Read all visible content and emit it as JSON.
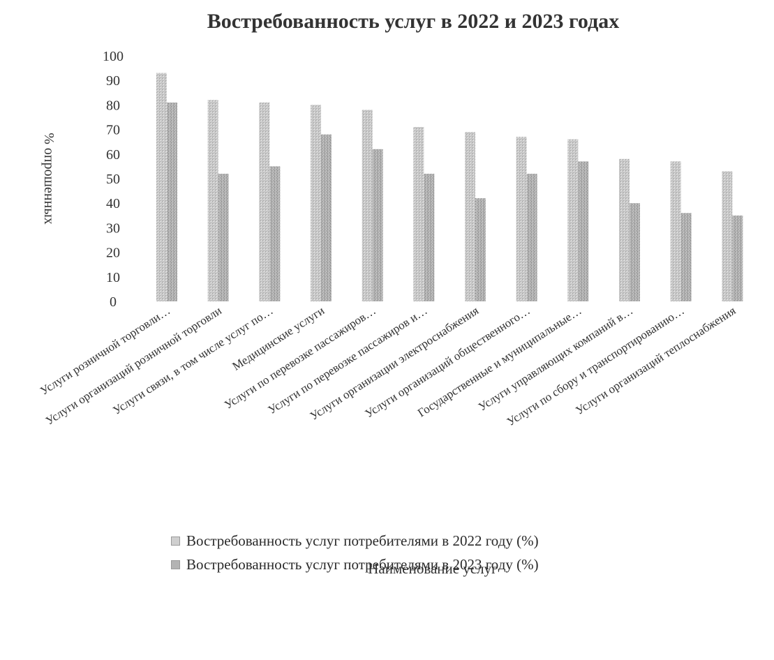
{
  "chart_data": {
    "type": "bar",
    "title": "Востребованность услуг в 2022 и 2023 годах",
    "xlabel": "Наименование услуг",
    "ylabel": "% опрошенных",
    "ylim": [
      0,
      100
    ],
    "yticks": [
      0,
      10,
      20,
      30,
      40,
      50,
      60,
      70,
      80,
      90,
      100
    ],
    "grid": false,
    "legend_position": "bottom",
    "categories": [
      "Услуги розничной торговли…",
      "Услуги организаций розничной торговли",
      "Услуги связи, в том числе услуг по…",
      "Медицинские услуги",
      "Услуги по перевозке пассажиров…",
      "Услуги по перевозке пассажиров и…",
      "Услуги организации электроснабжения",
      "Услуги организаций общественного…",
      "Государственные и муниципальные…",
      "Услуги управляющих компаний в…",
      "Услуги по сбору и транспортированию…",
      "Услуги организаций теплоснабжения"
    ],
    "series": [
      {
        "name": "Востребованность услуг потребителями в 2022 году (%)",
        "values": [
          93,
          82,
          81,
          80,
          78,
          71,
          69,
          67,
          66,
          58,
          57,
          53
        ],
        "color": "#c4c4c4"
      },
      {
        "name": "Востребованность услуг потребителями в 2023 году (%)",
        "values": [
          81,
          52,
          55,
          68,
          62,
          52,
          42,
          52,
          57,
          40,
          36,
          35
        ],
        "color": "#a9a9a9"
      }
    ]
  }
}
